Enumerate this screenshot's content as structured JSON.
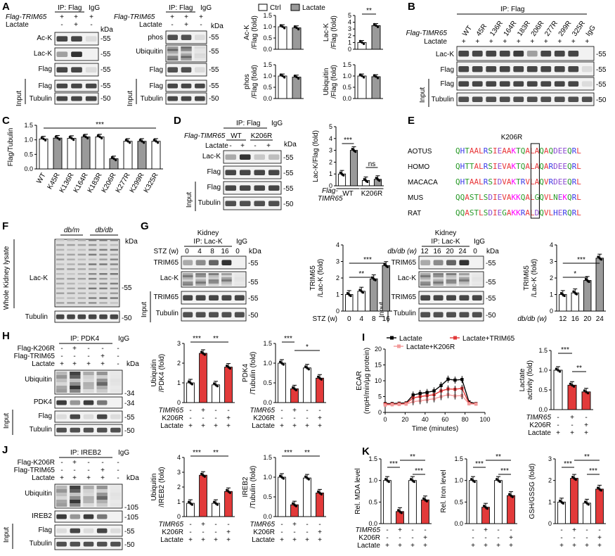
{
  "panels": {
    "A": {
      "letter": "A",
      "blot1": {
        "ip": "IP: Flag",
        "igg": "IgG",
        "row_flag": "Flag-TRIM65",
        "row_lac": "Lactate",
        "flag_signs": [
          "+",
          "+",
          "+"
        ],
        "lac_signs": [
          "-",
          "+",
          "-"
        ],
        "kda": "kDa",
        "bands": [
          "Ac-K",
          "Lac-K",
          "Flag"
        ],
        "input": "Input",
        "input_bands": [
          "Flag",
          "Tubulin"
        ],
        "mw": [
          "55",
          "55",
          "55",
          "55",
          "50"
        ]
      },
      "blot2": {
        "ip": "IP: Flag",
        "igg": "IgG",
        "row_flag": "Flag-TRIM65",
        "row_lac": "Lactate",
        "flag_signs": [
          "+",
          "+",
          "+"
        ],
        "lac_signs": [
          "-",
          "+",
          "-"
        ],
        "kda": "kDa",
        "bands": [
          "phos",
          "Ubiquitin",
          "Flag"
        ],
        "input": "Input",
        "input_bands": [
          "Flag",
          "Tubulin"
        ],
        "mw": [
          "55",
          "55",
          "55",
          "55",
          "50"
        ]
      },
      "legend": [
        "Ctrl",
        "Lactate"
      ],
      "bars": [
        {
          "ylabel": "Ac-K\n/Flag (fold)",
          "values": [
            1.0,
            0.95
          ],
          "yticks": [
            "0.0",
            "0.5",
            "1.0",
            "1.5"
          ],
          "sig": ""
        },
        {
          "ylabel": "Lac-K\n/Flag (fold)",
          "values": [
            1.0,
            3.5
          ],
          "yticks": [
            "0",
            "1",
            "2",
            "3",
            "4",
            "5"
          ],
          "sig": "**"
        },
        {
          "ylabel": "phos\n/Flag (fold)",
          "values": [
            1.0,
            0.95
          ],
          "yticks": [
            "0.0",
            "0.5",
            "1.0",
            "1.5"
          ],
          "sig": ""
        },
        {
          "ylabel": "Ubiquitin\n/Flag (fold)",
          "values": [
            1.0,
            0.97
          ],
          "yticks": [
            "0.0",
            "0.5",
            "1.0",
            "1.5"
          ],
          "sig": ""
        }
      ]
    },
    "B": {
      "letter": "B",
      "ip": "IP: Flag",
      "row_flag": "Flag-TIMR65",
      "row_lac": "Lactate",
      "lanes": [
        "WT",
        "45R",
        "136R",
        "164R",
        "183R",
        "206R",
        "277R",
        "299R",
        "325R",
        "IgG"
      ],
      "lac_signs": [
        "+",
        "+",
        "+",
        "+",
        "+",
        "+",
        "+",
        "+",
        "+",
        "+"
      ],
      "bands": [
        "Lac-K",
        "Flag"
      ],
      "input": "Input",
      "input_bands": [
        "Flag",
        "Tubulin"
      ],
      "mw": [
        "55",
        "55",
        "55",
        "50"
      ]
    },
    "C": {
      "letter": "C",
      "ylabel": "Flag/Tubulin",
      "categories": [
        "WT",
        "K45R",
        "K136R",
        "K164R",
        "K183R",
        "K206R",
        "K277R",
        "K299R",
        "K325R"
      ],
      "values": [
        1.03,
        1.06,
        1.05,
        1.1,
        1.1,
        0.35,
        0.95,
        0.95,
        0.95
      ],
      "yticks": [
        "0.0",
        "0.5",
        "1.0",
        "1.5"
      ],
      "sig": "***"
    },
    "D": {
      "letter": "D",
      "ip": "IP: Flag",
      "igg": "IgG",
      "row_flag": "Flag-TIMR65",
      "row_lac": "Lactate",
      "groups": [
        "WT",
        "K206R"
      ],
      "lac_signs": [
        "-",
        "+",
        "-",
        "+"
      ],
      "kda": "kDa",
      "bands": [
        "Lac-K",
        "Flag"
      ],
      "input": "Input",
      "input_bands": [
        "Flag",
        "Tubulin"
      ],
      "mw": [
        "55",
        "55",
        "55",
        "50"
      ],
      "bar": {
        "ylabel": "Lac-K/Flag (fold)",
        "values": [
          1.0,
          3.0,
          0.45,
          0.55
        ],
        "yticks": [
          "0",
          "1",
          "2",
          "3",
          "4",
          "5"
        ],
        "groups": [
          "WT",
          "K206R"
        ],
        "xprefix": "Flag-\nTIMR65",
        "sig": [
          "***",
          "ns"
        ]
      }
    },
    "E": {
      "letter": "E",
      "mutation": "K206R",
      "sequences": [
        {
          "species": "AOTUS",
          "seq": "QHTAALRSIEAAKTQALAQAQDEEQRL"
        },
        {
          "species": "HOMO",
          "seq": "QHTTALRSIEVAKTQALAQARDEEQRL"
        },
        {
          "species": "MACACA",
          "seq": "QHTAALRSIDVAKTRVLAQVRDEEQRL"
        },
        {
          "species": "MUS",
          "seq": "QQASTLSDIEVAKKQALGQVLNEKQRL"
        },
        {
          "species": "RAT",
          "seq": "QQASTLSDIEGAKKRALDQVLHERQRL"
        }
      ]
    },
    "F": {
      "letter": "F",
      "groups": [
        "db/m",
        "db/db"
      ],
      "kda": "kDa",
      "side": "Whole Kidney lysate",
      "bands": [
        "Lac-K",
        "Tubulin"
      ],
      "mw": [
        "55",
        "50"
      ]
    },
    "G": {
      "letter": "G",
      "blot1": {
        "tissue": "Kidney",
        "ip": "IP: Lac-K",
        "igg": "IgG",
        "row": "STZ (w)",
        "lanes": [
          "0",
          "4",
          "8",
          "16",
          "0"
        ],
        "kda": "kDa",
        "bands": [
          "TRIM65",
          "Lac-K"
        ],
        "input": "Input",
        "input_bands": [
          "TRIM65",
          "Tubulin"
        ],
        "mw": [
          "55",
          "55",
          "55",
          "50"
        ]
      },
      "bar1": {
        "ylabel": "TRIM65\n/Lac-K (fold)",
        "values": [
          1.0,
          1.2,
          1.95,
          2.75
        ],
        "yticks": [
          "0",
          "1",
          "2",
          "3",
          "4"
        ],
        "xlabel": "STZ (w)",
        "xcats": [
          "0",
          "4",
          "8",
          "16"
        ],
        "sig": [
          "***",
          "**"
        ]
      },
      "blot2": {
        "tissue": "Kidney",
        "ip": "IP: Lac-K",
        "igg": "IgG",
        "row": "db/db (w)",
        "lanes": [
          "12",
          "16",
          "20",
          "24",
          "0"
        ],
        "kda": "kDa",
        "bands": [
          "TRIM65",
          "Lac-K"
        ],
        "input": "Input",
        "input_bands": [
          "TRIM65",
          "Tubulin"
        ],
        "mw": [
          "55",
          "55",
          "55",
          "50"
        ]
      },
      "bar2": {
        "ylabel": "TRIM65\n/Lac-K (fold)",
        "values": [
          1.0,
          1.1,
          1.85,
          3.2
        ],
        "yticks": [
          "0",
          "1",
          "2",
          "3",
          "4"
        ],
        "xlabel": "db/db (w)",
        "xcats": [
          "12",
          "16",
          "20",
          "24"
        ],
        "sig": [
          "***",
          "*"
        ]
      }
    },
    "H": {
      "letter": "H",
      "ip": "IP: PDK4",
      "igg": "IgG",
      "rows": [
        "Flag-K206R",
        "Flag-TRIM65",
        "Lactate"
      ],
      "signs": [
        [
          "-",
          "+",
          "-",
          "-",
          "-"
        ],
        [
          "-",
          "-",
          "-",
          "+",
          "-"
        ],
        [
          "+",
          "+",
          "+",
          "+",
          "-"
        ]
      ],
      "kda": "kDa",
      "bands": [
        "Ubiquitin",
        "PDK4"
      ],
      "input": "Input",
      "input_bands": [
        "Flag",
        "Tubulin"
      ],
      "mw": [
        "34",
        "34",
        "55",
        "50"
      ],
      "bar1": {
        "ylabel": "Ubiquitin\n/PDK4 (fold)",
        "values": [
          1.0,
          2.5,
          0.9,
          1.8
        ],
        "yticks": [
          "0",
          "1",
          "2",
          "3"
        ],
        "sig": [
          "***",
          "**"
        ]
      },
      "bar2": {
        "ylabel": "PDK4\n/Tubulin (fold)",
        "values": [
          1.0,
          0.35,
          0.88,
          0.62
        ],
        "yticks": [
          "0.0",
          "0.5",
          "1.0",
          "1.5"
        ],
        "sig": [
          "***",
          "*"
        ]
      }
    },
    "I": {
      "letter": "I",
      "legend": [
        "Lactate",
        "Lactate+TRIM65",
        "Lactate+K206R"
      ],
      "line": {
        "ylabel": "ECAR\n(mpH/min/µg protein)",
        "xlabel": "Time (minutes)",
        "xticks": [
          "0",
          "20",
          "40",
          "60",
          "80",
          "100"
        ],
        "yticks": [
          "0",
          "5",
          "10",
          "15",
          "20"
        ],
        "x": [
          0,
          7,
          14,
          21,
          28,
          35,
          42,
          49,
          56,
          63,
          70,
          77,
          84,
          91
        ],
        "series": [
          {
            "name": "Lactate",
            "values": [
              2.8,
              2.8,
              2.9,
              3.0,
              5.5,
              6.0,
              6.3,
              6.8,
              8.5,
              10.5,
              10.2,
              10.4,
              3.3,
              2.8
            ]
          },
          {
            "name": "Lactate+TRIM65",
            "values": [
              2.6,
              2.6,
              2.7,
              2.8,
              4.6,
              5.0,
              5.3,
              5.6,
              6.8,
              7.4,
              7.3,
              7.6,
              2.9,
              2.7
            ]
          },
          {
            "name": "Lactate+K206R",
            "values": [
              2.3,
              2.4,
              2.5,
              2.6,
              3.4,
              3.7,
              4.0,
              4.3,
              5.0,
              5.6,
              5.2,
              5.3,
              2.7,
              2.6
            ]
          }
        ]
      },
      "bar": {
        "ylabel": "Lactate\nactivity (fold)",
        "values": [
          1.0,
          0.62,
          0.45
        ],
        "yticks": [
          "0.0",
          "0.5",
          "1.0",
          "1.5"
        ],
        "sig": [
          "***",
          "**"
        ]
      },
      "rows": [
        "TIMR65",
        "K206R",
        "Lactate"
      ],
      "signs": [
        [
          "-",
          "+",
          "-"
        ],
        [
          "-",
          "-",
          "+"
        ],
        [
          "+",
          "+",
          "+"
        ]
      ]
    },
    "J": {
      "letter": "J",
      "ip": "IP: IREB2",
      "igg": "IgG",
      "rows": [
        "Flag-K206R",
        "Flag-TRIM65",
        "Lactate"
      ],
      "signs": [
        [
          "-",
          "+",
          "-",
          "-",
          "-"
        ],
        [
          "-",
          "-",
          "-",
          "+",
          "-"
        ],
        [
          "+",
          "+",
          "+",
          "+",
          "-"
        ]
      ],
      "kda": "kDa",
      "bands": [
        "Ubiquitin",
        "IREB2"
      ],
      "input": "Input",
      "input_bands": [
        "Flag",
        "Tubulin"
      ],
      "mw": [
        "105",
        "105",
        "55",
        "50"
      ],
      "bar1": {
        "ylabel": "Ubiquitin\n/IREB2 (fold)",
        "values": [
          0.9,
          2.8,
          0.9,
          1.7
        ],
        "yticks": [
          "0",
          "1",
          "2",
          "3",
          "4"
        ],
        "sig": [
          "***",
          "**"
        ]
      },
      "bar2": {
        "ylabel": "IREB2\n/Tubulin (fold)",
        "values": [
          1.0,
          0.3,
          0.98,
          0.6
        ],
        "yticks": [
          "0.0",
          "0.5",
          "1.0",
          "1.5"
        ],
        "sig": [
          "***",
          "**"
        ]
      }
    },
    "K": {
      "letter": "K",
      "bar1": {
        "ylabel": "Rel. MDA level",
        "values": [
          1.0,
          0.28,
          1.0,
          0.55
        ],
        "yticks": [
          "0.0",
          "0.5",
          "1.0",
          "1.5"
        ],
        "sig": [
          "***",
          "**",
          "***"
        ]
      },
      "bar2": {
        "ylabel": "Rel. Iron level",
        "values": [
          1.0,
          0.38,
          1.0,
          0.65
        ],
        "yticks": [
          "0.0",
          "0.5",
          "1.0",
          "1.5"
        ],
        "sig": [
          "***",
          "**",
          "***"
        ]
      },
      "bar3": {
        "ylabel": "GSH/GSSG (fold)",
        "values": [
          1.0,
          2.1,
          0.95,
          1.6
        ],
        "yticks": [
          "0",
          "1",
          "2",
          "3"
        ],
        "sig": [
          "***",
          "**",
          "***"
        ]
      }
    },
    "HJK_rows": {
      "four": {
        "rows": [
          "TIMR65",
          "K206R",
          "Lactate"
        ],
        "signs": [
          [
            "-",
            "+",
            "-",
            "-"
          ],
          [
            "-",
            "-",
            "-",
            "+"
          ],
          [
            "+",
            "+",
            "+",
            "+"
          ]
        ]
      }
    }
  },
  "colors": {
    "white": "#ffffff",
    "gray": "#9a9a9a",
    "red": "#e23a3a",
    "pink": "#f29a9a",
    "black": "#000000",
    "lys": "#ff00ff",
    "hyd": "#e8383a",
    "pol": "#2a9a2a",
    "acid": "#8a4ad0",
    "basic": "#3a3ae8"
  }
}
